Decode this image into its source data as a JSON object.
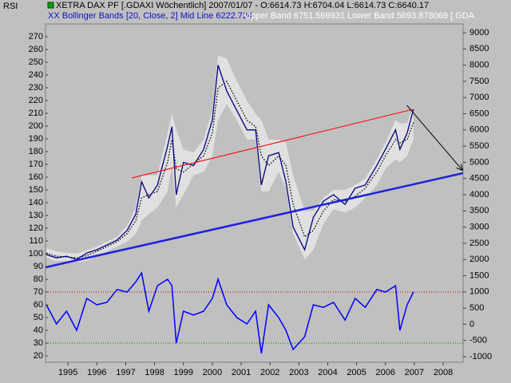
{
  "chart_data": {
    "type": "line",
    "indicator_label": "RSI",
    "header": [
      "XETRA DAX PF [.GDAXI  Wöchentlich] 2007/01/07 - O:6614.73 H:6704.04 L:6614.73 C:6640.17",
      "XX Bollinger Bands [20, Close, 2] Mid Line 6222.724",
      "Upper Band 6751.569931  Lower Band 5693.878069  [.GDA"
    ],
    "x": [
      1994.25,
      1994.6,
      1994.95,
      1995.3,
      1995.65,
      1996.0,
      1996.35,
      1996.7,
      1997.05,
      1997.35,
      1997.55,
      1997.8,
      1998.1,
      1998.45,
      1998.6,
      1998.75,
      1999.0,
      1999.35,
      1999.7,
      2000.0,
      2000.2,
      2000.5,
      2000.85,
      2001.2,
      2001.5,
      2001.7,
      2001.95,
      2002.3,
      2002.55,
      2002.8,
      2003.2,
      2003.5,
      2003.85,
      2004.2,
      2004.6,
      2004.95,
      2005.3,
      2005.7,
      2006.0,
      2006.35,
      2006.5,
      2006.75,
      2006.97
    ],
    "series": [
      {
        "color": "#e0e0e0",
        "axis": "y2",
        "role": "upper",
        "values": [
          2350,
          2250,
          2200,
          2180,
          2280,
          2400,
          2550,
          2700,
          3050,
          3600,
          4600,
          4600,
          4600,
          5900,
          6500,
          6000,
          5400,
          5300,
          5700,
          6600,
          8300,
          8200,
          7500,
          6900,
          6500,
          6300,
          5700,
          5700,
          5600,
          4600,
          3500,
          3500,
          3900,
          4150,
          4150,
          4300,
          4500,
          5100,
          5600,
          6300,
          6200,
          6200,
          6752
        ]
      },
      {
        "color": "#e0e0e0",
        "axis": "y2",
        "role": "lower",
        "values": [
          2050,
          1950,
          1960,
          1920,
          1960,
          2100,
          2250,
          2400,
          2550,
          2800,
          3200,
          3400,
          3600,
          4100,
          4900,
          3600,
          4000,
          4600,
          4700,
          5200,
          6300,
          6800,
          6300,
          5700,
          5700,
          4100,
          4100,
          4700,
          4200,
          2800,
          2000,
          2300,
          3100,
          3550,
          3450,
          3600,
          3900,
          4300,
          4800,
          5100,
          5000,
          5200,
          5694
        ]
      },
      {
        "color": "#000000",
        "axis": "y2",
        "role": "mid",
        "values": [
          2200,
          2100,
          2080,
          2050,
          2120,
          2250,
          2400,
          2550,
          2800,
          3200,
          3900,
          4000,
          4100,
          5000,
          5700,
          4800,
          4700,
          4950,
          5200,
          5900,
          7300,
          7500,
          6900,
          6300,
          6100,
          5200,
          4900,
          5200,
          4900,
          3700,
          2700,
          2900,
          3500,
          3850,
          3800,
          3950,
          4200,
          4700,
          5200,
          5700,
          5600,
          5700,
          6222
        ]
      },
      {
        "color": "#000080",
        "axis": "y2",
        "role": "price",
        "values": [
          2150,
          2050,
          2100,
          2000,
          2200,
          2300,
          2450,
          2600,
          2900,
          3400,
          4400,
          3900,
          4300,
          5500,
          6100,
          4000,
          5000,
          4900,
          5400,
          6300,
          8000,
          7200,
          6600,
          6000,
          6000,
          4300,
          5200,
          5300,
          4400,
          3000,
          2300,
          3300,
          3800,
          4000,
          3700,
          4200,
          4300,
          4900,
          5400,
          6000,
          5400,
          5900,
          6640
        ]
      },
      {
        "color": "#0000ff",
        "axis": "y",
        "role": "rsi",
        "values": [
          60,
          45,
          55,
          40,
          65,
          60,
          62,
          72,
          70,
          78,
          85,
          55,
          75,
          80,
          75,
          30,
          55,
          52,
          55,
          65,
          80,
          60,
          50,
          45,
          55,
          22,
          60,
          50,
          40,
          25,
          35,
          60,
          58,
          62,
          48,
          65,
          58,
          72,
          70,
          75,
          40,
          60,
          70
        ]
      }
    ],
    "trendlines": [
      {
        "color": "#ff0000",
        "x": [
          1997.21,
          2006.96
        ],
        "values": [
          4517,
          6636
        ]
      },
      {
        "color": "#2020e0",
        "x": [
          1994.22,
          2008.69
        ],
        "values": [
          1759,
          4665
        ]
      },
      {
        "color": "#000000",
        "x": [
          2006.74,
          2008.66
        ],
        "values": [
          6759,
          4764
        ]
      }
    ],
    "rsi_levels": [
      {
        "value": 70,
        "color": "#c00000"
      },
      {
        "value": 30,
        "color": "#008000"
      }
    ],
    "xlim": [
      1994.22,
      2008.69
    ],
    "xticks": [
      1995,
      1996,
      1997,
      1998,
      1999,
      2000,
      2001,
      2002,
      2003,
      2004,
      2005,
      2006,
      2007,
      2008
    ],
    "ylim": [
      20,
      270
    ],
    "yticks": [
      270,
      260,
      250,
      240,
      230,
      220,
      210,
      200,
      190,
      180,
      170,
      160,
      150,
      140,
      130,
      120,
      110,
      100,
      90,
      80,
      70,
      60,
      50,
      40,
      30,
      20
    ],
    "y2lim": [
      -1000,
      9000
    ],
    "y2ticks": [
      9000,
      8500,
      8000,
      7500,
      7000,
      6500,
      6000,
      5500,
      5000,
      4500,
      4000,
      3500,
      3000,
      2500,
      2000,
      1500,
      1000,
      500,
      0,
      -500,
      -1000
    ]
  }
}
